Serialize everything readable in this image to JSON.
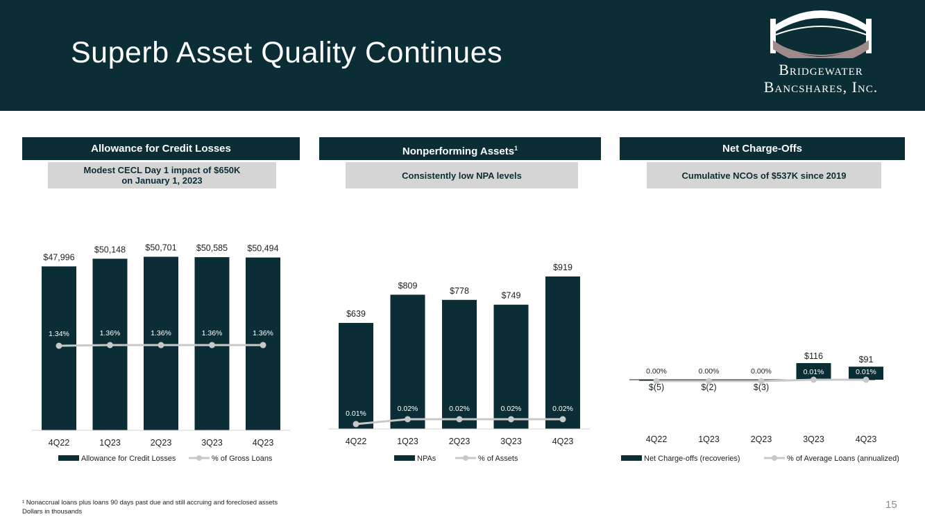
{
  "slide": {
    "title": "Superb Asset Quality Continues",
    "page_number": "15",
    "footnotes": [
      "¹ Nonaccrual loans plus loans 90 days past due and still accruing and foreclosed assets",
      "Dollars in thousands"
    ]
  },
  "logo": {
    "line1": "Bridgewater",
    "line2": "Bancshares, Inc."
  },
  "colors": {
    "navy": "#0b2d35",
    "line": "#c8c8c8",
    "subheader_bg": "#d5d5d5"
  },
  "panels": [
    {
      "header": "Allowance for Credit Losses",
      "header_sup": "",
      "subheader": [
        "Modest CECL Day 1 impact of $650K",
        "on January 1, 2023"
      ]
    },
    {
      "header": "Nonperforming Assets",
      "header_sup": "1",
      "subheader": [
        "Consistently low NPA levels"
      ]
    },
    {
      "header": "Net Charge-Offs",
      "header_sup": "",
      "subheader": [
        "Cumulative NCOs of $537K since 2019"
      ]
    }
  ],
  "chart_data": [
    {
      "type": "bar",
      "categories": [
        "4Q22",
        "1Q23",
        "2Q23",
        "3Q23",
        "4Q23"
      ],
      "series": [
        {
          "name": "Allowance for Credit Losses",
          "type": "bar",
          "values": [
            47996,
            50148,
            50701,
            50585,
            50494
          ],
          "labels": [
            "$47,996",
            "$50,148",
            "$50,701",
            "$50,585",
            "$50,494"
          ]
        },
        {
          "name": "% of Gross Loans",
          "type": "line",
          "values": [
            1.34,
            1.36,
            1.36,
            1.36,
            1.36
          ],
          "labels": [
            "1.34%",
            "1.36%",
            "1.36%",
            "1.36%",
            "1.36%"
          ]
        }
      ],
      "legend": "bottom"
    },
    {
      "type": "bar",
      "categories": [
        "4Q22",
        "1Q23",
        "2Q23",
        "3Q23",
        "4Q23"
      ],
      "series": [
        {
          "name": "NPAs",
          "type": "bar",
          "values": [
            639,
            809,
            778,
            749,
            919
          ],
          "labels": [
            "$639",
            "$809",
            "$778",
            "$749",
            "$919"
          ]
        },
        {
          "name": "% of Assets",
          "type": "line",
          "values": [
            0.01,
            0.02,
            0.02,
            0.02,
            0.02
          ],
          "labels": [
            "0.01%",
            "0.02%",
            "0.02%",
            "0.02%",
            "0.02%"
          ]
        }
      ],
      "legend": "bottom"
    },
    {
      "type": "bar",
      "categories": [
        "4Q22",
        "1Q23",
        "2Q23",
        "3Q23",
        "4Q23"
      ],
      "series": [
        {
          "name": "Net Charge-offs (recoveries)",
          "type": "bar",
          "values": [
            -5,
            -2,
            -3,
            116,
            91
          ],
          "labels": [
            "$(5)",
            "$(2)",
            "$(3)",
            "$116",
            "$91"
          ]
        },
        {
          "name": "% of Average Loans (annualized)",
          "type": "line",
          "values": [
            0.0,
            0.0,
            0.0,
            0.01,
            0.01
          ],
          "labels": [
            "0.00%",
            "0.00%",
            "0.00%",
            "0.01%",
            "0.01%"
          ]
        }
      ],
      "legend": "bottom"
    }
  ]
}
